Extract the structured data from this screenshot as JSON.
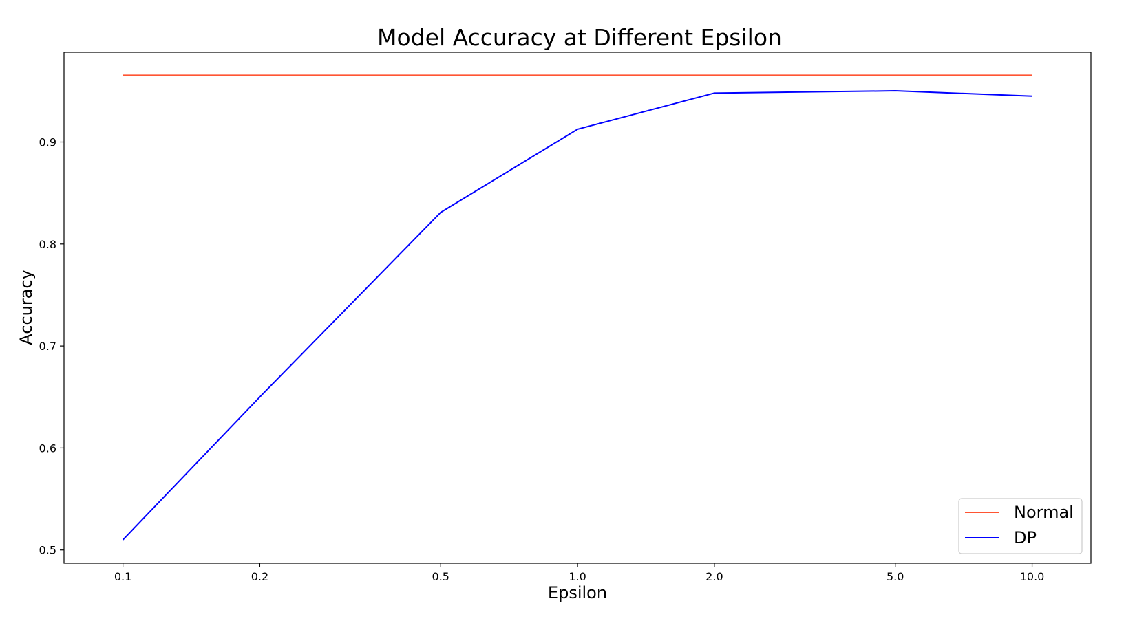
{
  "chart_data": {
    "type": "line",
    "title": "Model Accuracy at Different Epsilon",
    "xlabel": "Epsilon",
    "ylabel": "Accuracy",
    "x_scale": "log",
    "x": [
      0.1,
      0.2,
      0.5,
      1.0,
      2.0,
      5.0,
      10.0
    ],
    "x_tick_labels": [
      "0.1",
      "0.2",
      "0.5",
      "1.0",
      "2.0",
      "5.0",
      "10.0"
    ],
    "y_ticks": [
      0.5,
      0.6,
      0.7,
      0.8,
      0.9
    ],
    "y_tick_labels": [
      "0.5",
      "0.6",
      "0.7",
      "0.8",
      "0.9"
    ],
    "xlim": [
      0.0742,
      13.47
    ],
    "ylim": [
      0.487,
      0.988
    ],
    "grid": false,
    "legend_position": "bottom-right",
    "series": [
      {
        "name": "Normal",
        "color": "#ff5533",
        "values": [
          0.9655,
          0.9655,
          0.9655,
          0.9655,
          0.9655,
          0.9655,
          0.9655
        ]
      },
      {
        "name": "DP",
        "color": "#0000ff",
        "values": [
          0.51,
          0.65,
          0.831,
          0.9125,
          0.948,
          0.9502,
          0.945
        ]
      }
    ]
  }
}
